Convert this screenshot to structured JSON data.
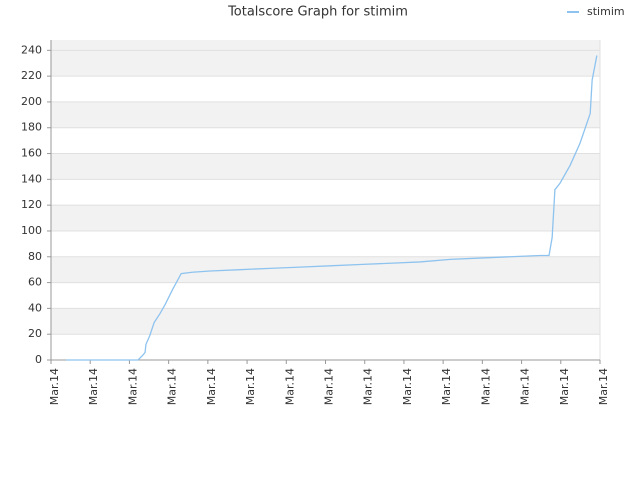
{
  "chart_data": {
    "type": "line",
    "title": "Totalscore Graph for stimim",
    "x": [
      0.38,
      2.22,
      2.35,
      2.4,
      2.42,
      2.52,
      2.63,
      2.78,
      2.91,
      3.09,
      3.32,
      3.6,
      4.06,
      4.82,
      5.58,
      6.35,
      7.12,
      7.88,
      8.65,
      9.41,
      10.18,
      10.94,
      11.71,
      12.47,
      12.7,
      12.78,
      12.85,
      12.98,
      13.24,
      13.49,
      13.75,
      13.8,
      13.92
    ],
    "series": [
      {
        "name": "stimim",
        "color": "#8ec3ef",
        "values": [
          0,
          0,
          4,
          6,
          12,
          19,
          29,
          36,
          43,
          54,
          67,
          68,
          69,
          70,
          71,
          72,
          73,
          74,
          75,
          76,
          78,
          79,
          80,
          81,
          81,
          95,
          132,
          137,
          151,
          168,
          191,
          217,
          236
        ]
      }
    ],
    "xlim": [
      0,
      14
    ],
    "xticks": [
      {
        "value": 0,
        "label": "Mar.14"
      },
      {
        "value": 1,
        "label": "Mar.14"
      },
      {
        "value": 2,
        "label": "Mar.14"
      },
      {
        "value": 3,
        "label": "Mar.14"
      },
      {
        "value": 4,
        "label": "Mar.14"
      },
      {
        "value": 5,
        "label": "Mar.14"
      },
      {
        "value": 6,
        "label": "Mar.14"
      },
      {
        "value": 7,
        "label": "Mar.14"
      },
      {
        "value": 8,
        "label": "Mar.14"
      },
      {
        "value": 9,
        "label": "Mar.14"
      },
      {
        "value": 10,
        "label": "Mar.14"
      },
      {
        "value": 11,
        "label": "Mar.14"
      },
      {
        "value": 12,
        "label": "Mar.14"
      },
      {
        "value": 13,
        "label": "Mar.14"
      },
      {
        "value": 14,
        "label": "Mar.14"
      }
    ],
    "ylim": [
      0,
      248
    ],
    "yticks": [
      0,
      20,
      40,
      60,
      80,
      100,
      120,
      140,
      160,
      180,
      200,
      220,
      240
    ],
    "grid": true,
    "legend": "top-right"
  }
}
